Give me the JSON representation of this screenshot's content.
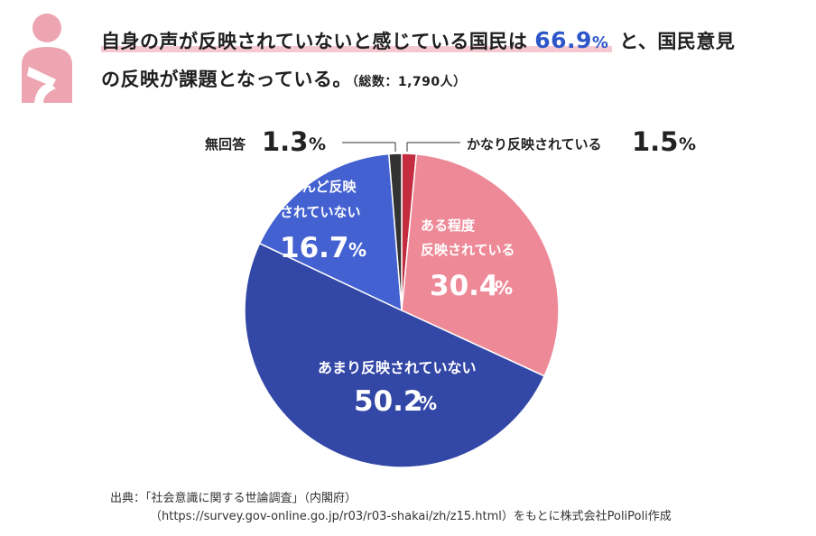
{
  "headline": {
    "part1": "自身の声が反映されていないと感じている国民は",
    "highlight": "66.9",
    "highlight_unit": "%",
    "part2": "と、国民意見",
    "line2": "の反映が課題となっている。",
    "total": "（総数：1,790人）"
  },
  "colors": {
    "accent_blue": "#2d57c9",
    "highlight_pink": "#f6c9d2",
    "person_icon": "#eea5b2"
  },
  "chart_data": {
    "type": "pie",
    "title": "",
    "slices": [
      {
        "label": "かなり反映されている",
        "value": 1.5,
        "color": "#c42c40"
      },
      {
        "label": "ある程度反映されている",
        "value": 30.4,
        "color": "#ee8a98"
      },
      {
        "label": "あまり反映されていない",
        "value": 50.2,
        "color": "#3347a6"
      },
      {
        "label": "ほとんど反映されていない",
        "value": 16.7,
        "color": "#4361d1"
      },
      {
        "label": "無回答",
        "value": 1.3,
        "color": "#323232"
      }
    ],
    "labels": {
      "kanari": {
        "text": "かなり反映されている",
        "value": "1.5",
        "unit": "%"
      },
      "arutei_1": "ある程度",
      "arutei_2": "反映されている",
      "arutei_value": "30.4",
      "amari": "あまり反映されていない",
      "amari_value": "50.2",
      "hotondo_1": "ほとんど反映",
      "hotondo_2": "されていない",
      "hotondo_value": "16.7",
      "mukaitou": {
        "text": "無回答",
        "value": "1.3",
        "unit": "%"
      },
      "unit": "%"
    }
  },
  "footer": {
    "line1": "出典：「社会意識に関する世論調査」（内閣府）",
    "line2": "（https://survey.gov-online.go.jp/r03/r03-shakai/zh/z15.html）をもとに株式会社PoliPoli作成"
  }
}
